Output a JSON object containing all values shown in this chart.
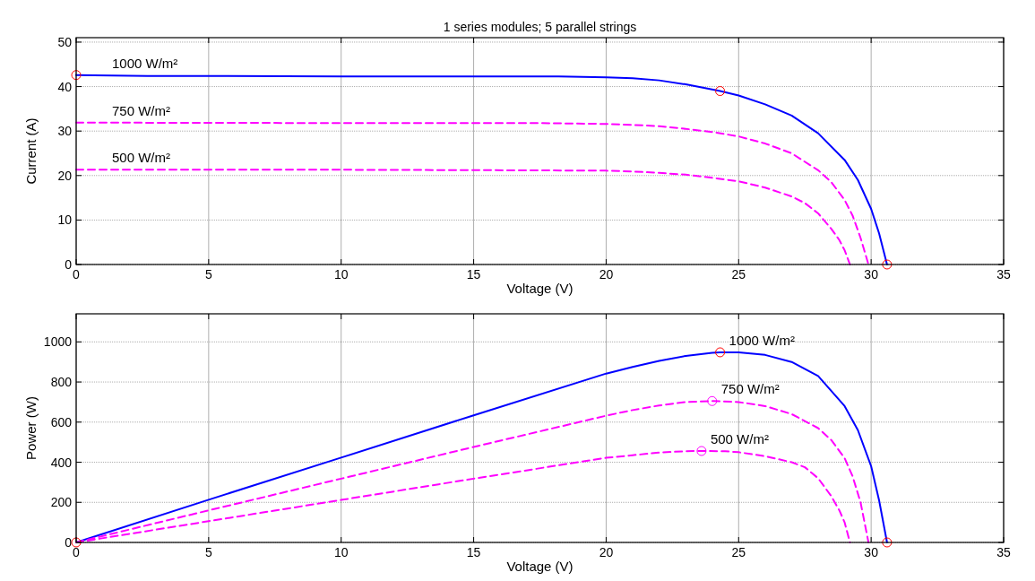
{
  "chart_data": [
    {
      "type": "line",
      "title": "1 series modules; 5 parallel strings",
      "xlabel": "Voltage (V)",
      "ylabel": "Current (A)",
      "xlim": [
        0,
        35
      ],
      "xticks": [
        0,
        5,
        10,
        15,
        20,
        25,
        30,
        35
      ],
      "ylim": [
        0,
        51
      ],
      "yticks": [
        0,
        10,
        20,
        30,
        40,
        50
      ],
      "grid": true,
      "series": [
        {
          "name": "1000 W/m²",
          "color": "#0000ff",
          "line_style": "solid",
          "marker": "none",
          "x": [
            0,
            2.7,
            10,
            18.2,
            20,
            21,
            22,
            23,
            24.3,
            25,
            26,
            27,
            28,
            29,
            29.5,
            30,
            30.3,
            30.6
          ],
          "values": [
            42.6,
            42.4,
            42.3,
            42.3,
            42.1,
            41.9,
            41.4,
            40.5,
            39,
            38,
            36,
            33.5,
            29.5,
            23.5,
            19,
            12.5,
            7,
            0
          ]
        },
        {
          "name": "750 W/m²",
          "color": "#ff00ff",
          "line_style": "dashed",
          "marker": "none",
          "x": [
            0,
            10,
            17.5,
            20,
            21,
            22,
            23,
            24,
            25,
            26,
            27,
            28,
            28.5,
            29,
            29.3,
            29.6,
            29.9
          ],
          "values": [
            31.9,
            31.8,
            31.8,
            31.6,
            31.4,
            31.1,
            30.5,
            29.8,
            28.8,
            27.2,
            25,
            21.2,
            18.5,
            14.5,
            11,
            6,
            0
          ]
        },
        {
          "name": "500 W/m²",
          "color": "#ff00ff",
          "line_style": "dashed",
          "marker": "none",
          "x": [
            0,
            10,
            15.5,
            20,
            21,
            22,
            23,
            24,
            25,
            26,
            27,
            27.5,
            28,
            28.5,
            28.8,
            29,
            29.2
          ],
          "values": [
            21.3,
            21.3,
            21.2,
            21.1,
            20.9,
            20.6,
            20.2,
            19.5,
            18.7,
            17.3,
            15.3,
            13.8,
            11.5,
            8,
            5.5,
            3.2,
            0
          ]
        },
        {
          "type": "scatter",
          "color": "#ff0000",
          "marker": "circle",
          "x": [
            0,
            24.3,
            30.6
          ],
          "values": [
            42.6,
            39,
            0
          ]
        }
      ]
    },
    {
      "type": "line",
      "xlabel": "Voltage (V)",
      "ylabel": "Power (W)",
      "xlim": [
        0,
        35
      ],
      "xticks": [
        0,
        5,
        10,
        15,
        20,
        25,
        30,
        35
      ],
      "ylim": [
        0,
        1140
      ],
      "yticks": [
        0,
        200,
        400,
        600,
        800,
        1000
      ],
      "grid": true,
      "series": [
        {
          "name": "1000 W/m²",
          "color": "#0000ff",
          "line_style": "solid",
          "marker": "none",
          "x": [
            0,
            5,
            10,
            15,
            20,
            21,
            22,
            23,
            24,
            24.3,
            25,
            26,
            27,
            28,
            29,
            29.5,
            30,
            30.3,
            30.6
          ],
          "values": [
            0,
            213,
            423,
            634,
            842,
            875,
            905,
            930,
            945,
            948,
            948,
            935,
            900,
            830,
            680,
            560,
            380,
            210,
            0
          ]
        },
        {
          "name": "750 W/m²",
          "color": "#ff00ff",
          "line_style": "dashed",
          "marker": "none",
          "x": [
            0,
            5,
            10,
            15,
            20,
            21,
            22,
            23,
            24,
            25,
            26,
            27,
            28,
            28.5,
            29,
            29.3,
            29.6,
            29.9
          ],
          "values": [
            0,
            160,
            318,
            476,
            632,
            660,
            683,
            700,
            705,
            700,
            680,
            640,
            570,
            510,
            420,
            330,
            200,
            0
          ]
        },
        {
          "name": "500 W/m²",
          "color": "#ff00ff",
          "line_style": "dashed",
          "marker": "none",
          "x": [
            0,
            5,
            10,
            15,
            20,
            21,
            22,
            23,
            23.6,
            24.5,
            25,
            26,
            27,
            27.5,
            28,
            28.5,
            28.8,
            29,
            29.2
          ],
          "values": [
            0,
            106,
            212,
            318,
            422,
            435,
            448,
            455,
            456,
            455,
            450,
            430,
            400,
            375,
            320,
            230,
            160,
            100,
            0
          ]
        },
        {
          "type": "scatter",
          "color": "#ff0000",
          "marker": "circle",
          "x": [
            0,
            24.3,
            30.6
          ],
          "values": [
            0,
            948,
            0
          ]
        },
        {
          "type": "scatter",
          "color": "#ff00ff",
          "marker": "circle",
          "x": [
            24,
            23.6
          ],
          "values": [
            705,
            456
          ]
        }
      ]
    }
  ]
}
